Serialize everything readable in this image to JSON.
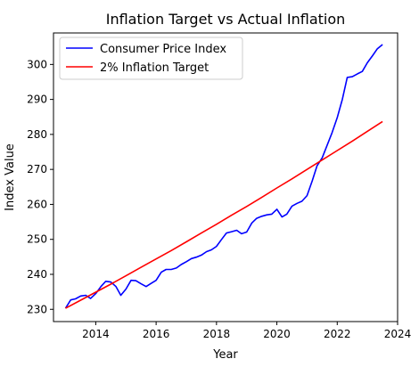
{
  "chart_data": {
    "type": "line",
    "title": "Inflation Target vs Actual Inflation",
    "xlabel": "Year",
    "ylabel": "Index Value",
    "xlim": [
      2012.6,
      2024.0
    ],
    "ylim": [
      226.5,
      309.0
    ],
    "x_ticks": [
      2014,
      2016,
      2018,
      2020,
      2022,
      2024
    ],
    "y_ticks": [
      230,
      240,
      250,
      260,
      270,
      280,
      290,
      300
    ],
    "grid": false,
    "legend_position": "upper-left",
    "series": [
      {
        "name": "Consumer Price Index",
        "color": "#0000ff",
        "x": [
          2013.0,
          2013.17,
          2013.33,
          2013.5,
          2013.67,
          2013.83,
          2014.0,
          2014.17,
          2014.33,
          2014.5,
          2014.67,
          2014.83,
          2015.0,
          2015.17,
          2015.33,
          2015.5,
          2015.67,
          2015.83,
          2016.0,
          2016.17,
          2016.33,
          2016.5,
          2016.67,
          2016.83,
          2017.0,
          2017.17,
          2017.33,
          2017.5,
          2017.67,
          2017.83,
          2018.0,
          2018.17,
          2018.33,
          2018.5,
          2018.67,
          2018.83,
          2019.0,
          2019.17,
          2019.33,
          2019.5,
          2019.67,
          2019.83,
          2020.0,
          2020.17,
          2020.33,
          2020.5,
          2020.67,
          2020.83,
          2021.0,
          2021.17,
          2021.33,
          2021.5,
          2021.67,
          2021.83,
          2022.0,
          2022.17,
          2022.33,
          2022.5,
          2022.67,
          2022.83,
          2023.0,
          2023.17,
          2023.33,
          2023.5
        ],
        "values": [
          230.3,
          232.7,
          233.0,
          233.8,
          234.0,
          233.1,
          234.5,
          236.5,
          238.0,
          237.8,
          236.5,
          234.0,
          235.8,
          238.3,
          238.2,
          237.3,
          236.5,
          237.4,
          238.3,
          240.6,
          241.4,
          241.4,
          241.8,
          242.8,
          243.6,
          244.5,
          244.9,
          245.5,
          246.5,
          247.0,
          248.0,
          250.0,
          251.8,
          252.2,
          252.6,
          251.6,
          252.1,
          254.7,
          256.0,
          256.6,
          257.0,
          257.2,
          258.6,
          256.4,
          257.2,
          259.5,
          260.3,
          260.9,
          262.5,
          266.7,
          271.0,
          273.3,
          277.0,
          280.5,
          284.8,
          290.0,
          296.3,
          296.5,
          297.3,
          298.0,
          300.5,
          302.5,
          304.5,
          305.7
        ]
      },
      {
        "name": "2% Inflation Target",
        "color": "#ff0000",
        "x": [
          2013.0,
          2013.5,
          2014.0,
          2014.5,
          2015.0,
          2015.5,
          2016.0,
          2016.5,
          2017.0,
          2017.5,
          2018.0,
          2018.5,
          2019.0,
          2019.5,
          2020.0,
          2020.5,
          2021.0,
          2021.5,
          2022.0,
          2022.5,
          2023.0,
          2023.5
        ],
        "values": [
          230.3,
          232.6,
          234.9,
          237.2,
          239.6,
          242.0,
          244.4,
          246.8,
          249.3,
          251.8,
          254.3,
          256.9,
          259.4,
          262.0,
          264.7,
          267.3,
          270.0,
          272.7,
          275.4,
          278.1,
          280.9,
          283.7
        ]
      }
    ]
  }
}
